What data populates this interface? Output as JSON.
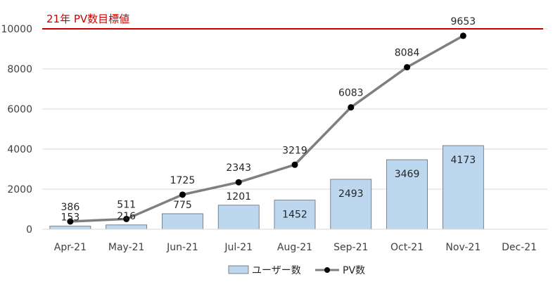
{
  "chart_data": {
    "type": "bar",
    "categories": [
      "Apr-21",
      "May-21",
      "Jun-21",
      "Jul-21",
      "Aug-21",
      "Sep-21",
      "Oct-21",
      "Nov-21",
      "Dec-21"
    ],
    "series": [
      {
        "name": "ユーザー数",
        "type": "bar",
        "values": [
          153,
          216,
          775,
          1201,
          1452,
          2493,
          3469,
          4173,
          null
        ]
      },
      {
        "name": "PV数",
        "type": "line",
        "values": [
          386,
          511,
          1725,
          2343,
          3219,
          6083,
          8084,
          9653,
          null
        ]
      }
    ],
    "ylim": [
      0,
      10000
    ],
    "yticks": [
      0,
      2000,
      4000,
      6000,
      8000,
      10000
    ],
    "target": {
      "value": 10000,
      "label": "21年 PV数目標値"
    },
    "grid": true,
    "legend": "bottom",
    "colors": {
      "bar_fill": "#bdd7ee",
      "bar_stroke": "#5f6a76",
      "line": "#7f7f7f",
      "marker": "#000000",
      "target": "#cc0000",
      "grid": "#d9d9d9"
    }
  }
}
